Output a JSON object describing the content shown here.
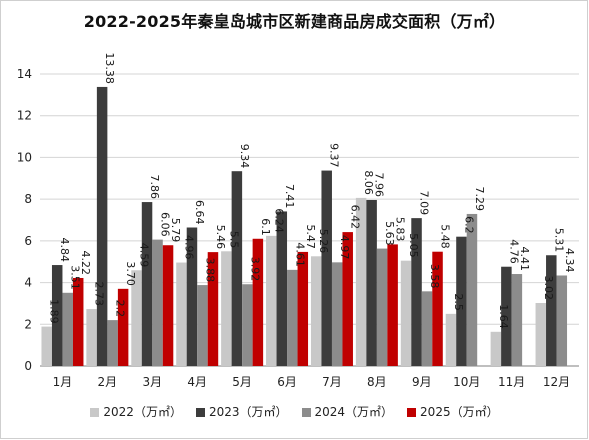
{
  "colors": {
    "s2022": "#c8c8c8",
    "s2023": "#3c3c3c",
    "s2024": "#8c8c8c",
    "s2025": "#c00000",
    "grid": "#d4d4d4",
    "axis": "#7f7f7f"
  },
  "chart_data": {
    "type": "bar",
    "title": "2022-2025年秦皇岛城市区新建商品房成交面积（万㎡）",
    "categories": [
      "1月",
      "2月",
      "3月",
      "4月",
      "5月",
      "6月",
      "7月",
      "8月",
      "9月",
      "10月",
      "11月",
      "12月"
    ],
    "ylim": [
      0,
      14
    ],
    "yticks": [
      "0",
      "2",
      "4",
      "6",
      "8",
      "10",
      "12",
      "14"
    ],
    "grid": true,
    "legend_position": "bottom",
    "series": [
      {
        "name": "2022（万㎡）",
        "values": [
          1.89,
          2.73,
          4.59,
          4.96,
          5.5,
          6.24,
          5.26,
          8.06,
          5.05,
          2.5,
          1.64,
          3.02
        ],
        "labels": [
          "1.89",
          "2.73",
          "4.59",
          "4.96",
          "5.5",
          "6.24",
          "5.26",
          "8.06",
          "5.05",
          "2.5",
          "1.64",
          "3.02"
        ]
      },
      {
        "name": "2023（万㎡）",
        "values": [
          4.84,
          13.38,
          7.86,
          6.64,
          9.34,
          7.41,
          9.37,
          7.96,
          7.09,
          6.2,
          4.76,
          5.31
        ],
        "labels": [
          "4.84",
          "13.38",
          "7.86",
          "6.64",
          "9.34",
          "7.41",
          "9.37",
          "7.96",
          "7.09",
          "6.2",
          "4.76",
          "5.31"
        ]
      },
      {
        "name": "2024（万㎡）",
        "values": [
          3.51,
          2.2,
          6.06,
          3.88,
          3.92,
          4.61,
          4.97,
          5.63,
          3.58,
          7.29,
          4.41,
          4.34
        ],
        "labels": [
          "3.51",
          "2.2",
          "6.06",
          "3.88",
          "3.92",
          "4.61",
          "4.97",
          "5.63",
          "3.58",
          "7.29",
          "4.41",
          "4.34"
        ]
      },
      {
        "name": "2025（万㎡）",
        "values": [
          4.22,
          3.7,
          5.79,
          5.46,
          6.1,
          5.47,
          6.42,
          5.83,
          5.48,
          null,
          null,
          null
        ],
        "labels": [
          "4.22",
          "3.70",
          "5.79",
          "5.46",
          "6.1",
          "5.47",
          "6.42",
          "5.83",
          "5.48",
          "",
          "",
          ""
        ]
      }
    ]
  }
}
